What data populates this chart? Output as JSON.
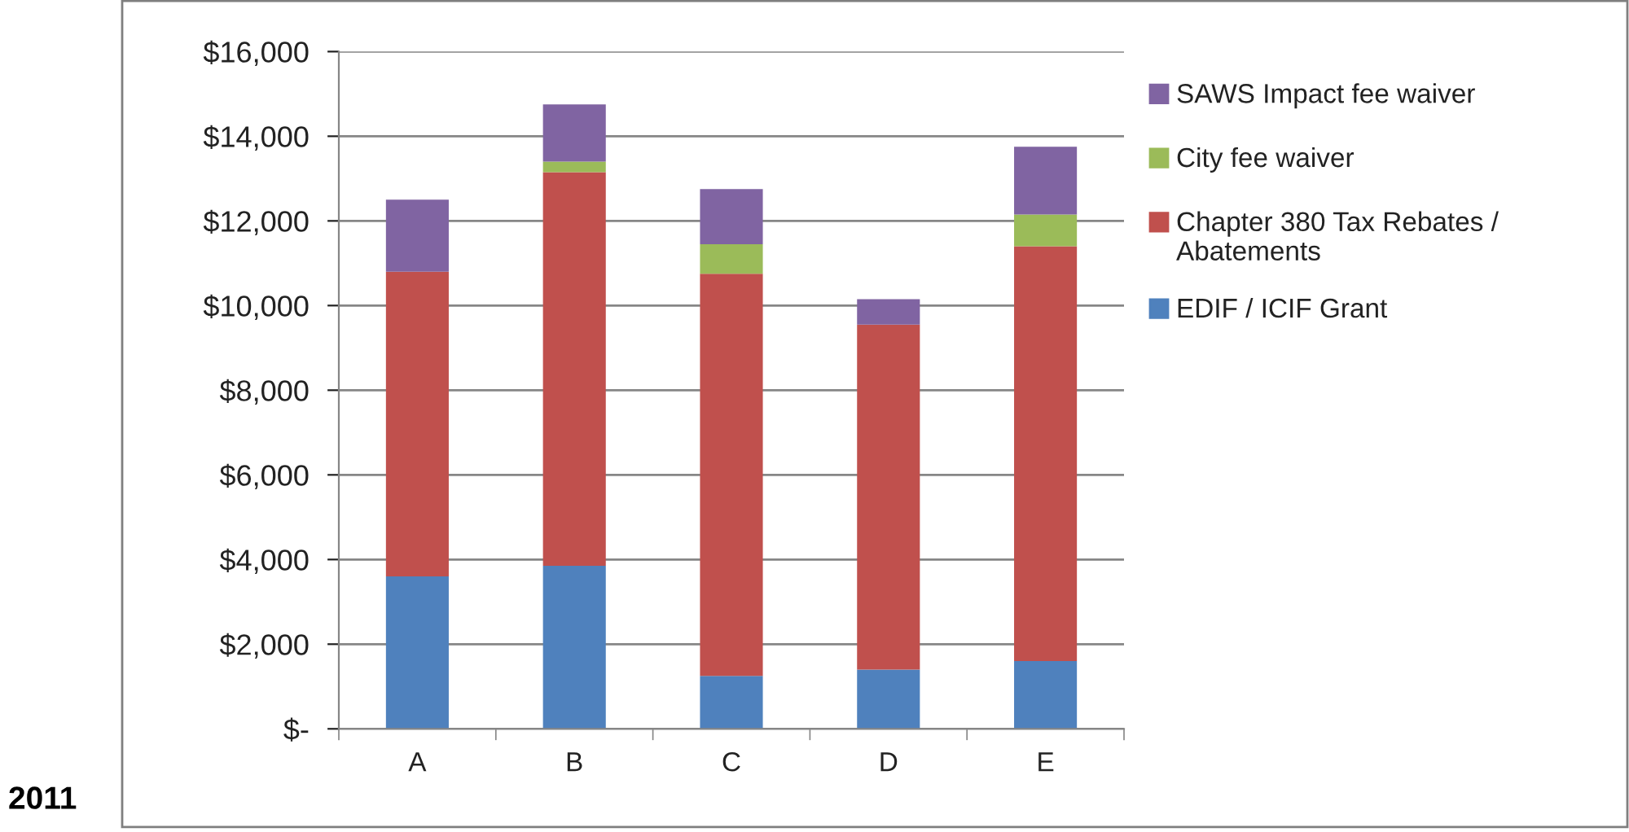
{
  "chart_data": {
    "type": "bar",
    "stacked": true,
    "categories": [
      "A",
      "B",
      "C",
      "D",
      "E"
    ],
    "series": [
      {
        "name": "EDIF / ICIF Grant",
        "color": "#4f81bd",
        "values": [
          3600,
          3850,
          1250,
          1400,
          1600
        ]
      },
      {
        "name": "Chapter 380 Tax Rebates / Abatements",
        "color": "#c0504d",
        "values": [
          7200,
          9300,
          9500,
          8150,
          9800
        ]
      },
      {
        "name": "City fee waiver",
        "color": "#9bbb59",
        "values": [
          0,
          250,
          700,
          0,
          750
        ]
      },
      {
        "name": "SAWS Impact fee waiver",
        "color": "#8064a2",
        "values": [
          1700,
          1350,
          1300,
          600,
          1600
        ]
      }
    ],
    "ylim": [
      0,
      16000
    ],
    "yticks": [
      {
        "value": 0,
        "label": "$-"
      },
      {
        "value": 2000,
        "label": "$2,000"
      },
      {
        "value": 4000,
        "label": "$4,000"
      },
      {
        "value": 6000,
        "label": "$6,000"
      },
      {
        "value": 8000,
        "label": "$8,000"
      },
      {
        "value": 10000,
        "label": "$10,000"
      },
      {
        "value": 12000,
        "label": "$12,000"
      },
      {
        "value": 14000,
        "label": "$14,000"
      },
      {
        "value": 16000,
        "label": "$16,000"
      }
    ],
    "grid": "y",
    "legend": "right",
    "annotations": [
      "2011"
    ]
  }
}
